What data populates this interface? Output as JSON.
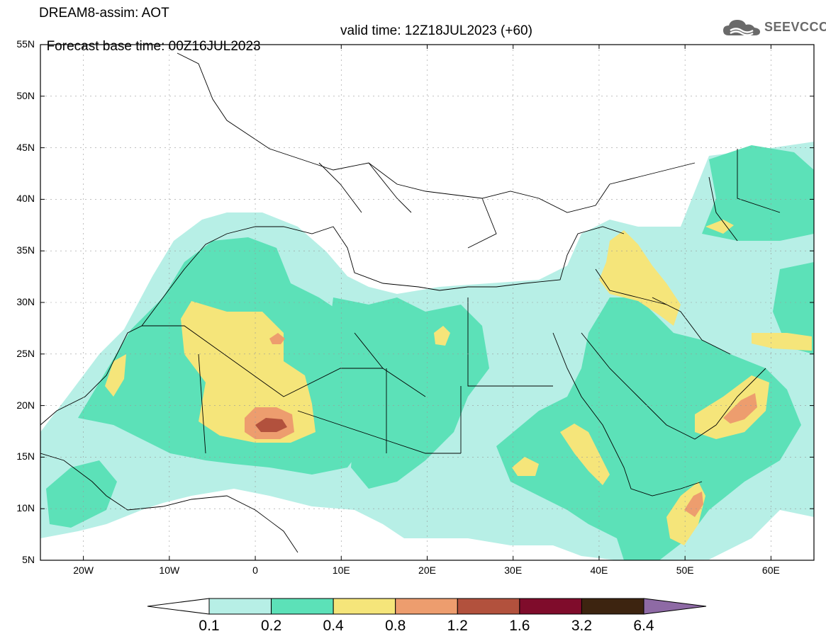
{
  "header": {
    "line1": "DREAM8-assim: AOT",
    "base_time": "Forecast base time: 00Z16JUL2023",
    "valid_time": "valid time: 12Z18JUL2023 (+60)"
  },
  "logo": {
    "text": "SEEVCCC",
    "icon": "cloud-icon",
    "color": "#6a6a6a"
  },
  "map_extent": {
    "lon_min": -25,
    "lon_max": 65,
    "lat_min": 5,
    "lat_max": 55
  },
  "lat_ticks": [
    {
      "value": 55,
      "label": "55N"
    },
    {
      "value": 50,
      "label": "50N"
    },
    {
      "value": 45,
      "label": "45N"
    },
    {
      "value": 40,
      "label": "40N"
    },
    {
      "value": 35,
      "label": "35N"
    },
    {
      "value": 30,
      "label": "30N"
    },
    {
      "value": 25,
      "label": "25N"
    },
    {
      "value": 20,
      "label": "20N"
    },
    {
      "value": 15,
      "label": "15N"
    },
    {
      "value": 10,
      "label": "10N"
    },
    {
      "value": 5,
      "label": "5N"
    }
  ],
  "lon_ticks": [
    {
      "value": -20,
      "label": "20W"
    },
    {
      "value": -10,
      "label": "10W"
    },
    {
      "value": 0,
      "label": "0"
    },
    {
      "value": 10,
      "label": "10E"
    },
    {
      "value": 20,
      "label": "20E"
    },
    {
      "value": 30,
      "label": "30E"
    },
    {
      "value": 40,
      "label": "40E"
    },
    {
      "value": 50,
      "label": "50E"
    },
    {
      "value": 60,
      "label": "60E"
    }
  ],
  "colorbar": {
    "labels": [
      "0.1",
      "0.2",
      "0.4",
      "0.8",
      "1.2",
      "1.6",
      "3.2",
      "6.4"
    ],
    "colors": [
      "#ffffff",
      "#b7efe6",
      "#5ce1b8",
      "#f5e57a",
      "#ed9d6e",
      "#b2513d",
      "#7f0c2b",
      "#3d2410",
      "#8e6aa5"
    ]
  },
  "palette": {
    "c1": "#b7efe6",
    "c2": "#5ce1b8",
    "c3": "#f5e57a",
    "c4": "#ed9d6e",
    "c5": "#b2513d"
  }
}
